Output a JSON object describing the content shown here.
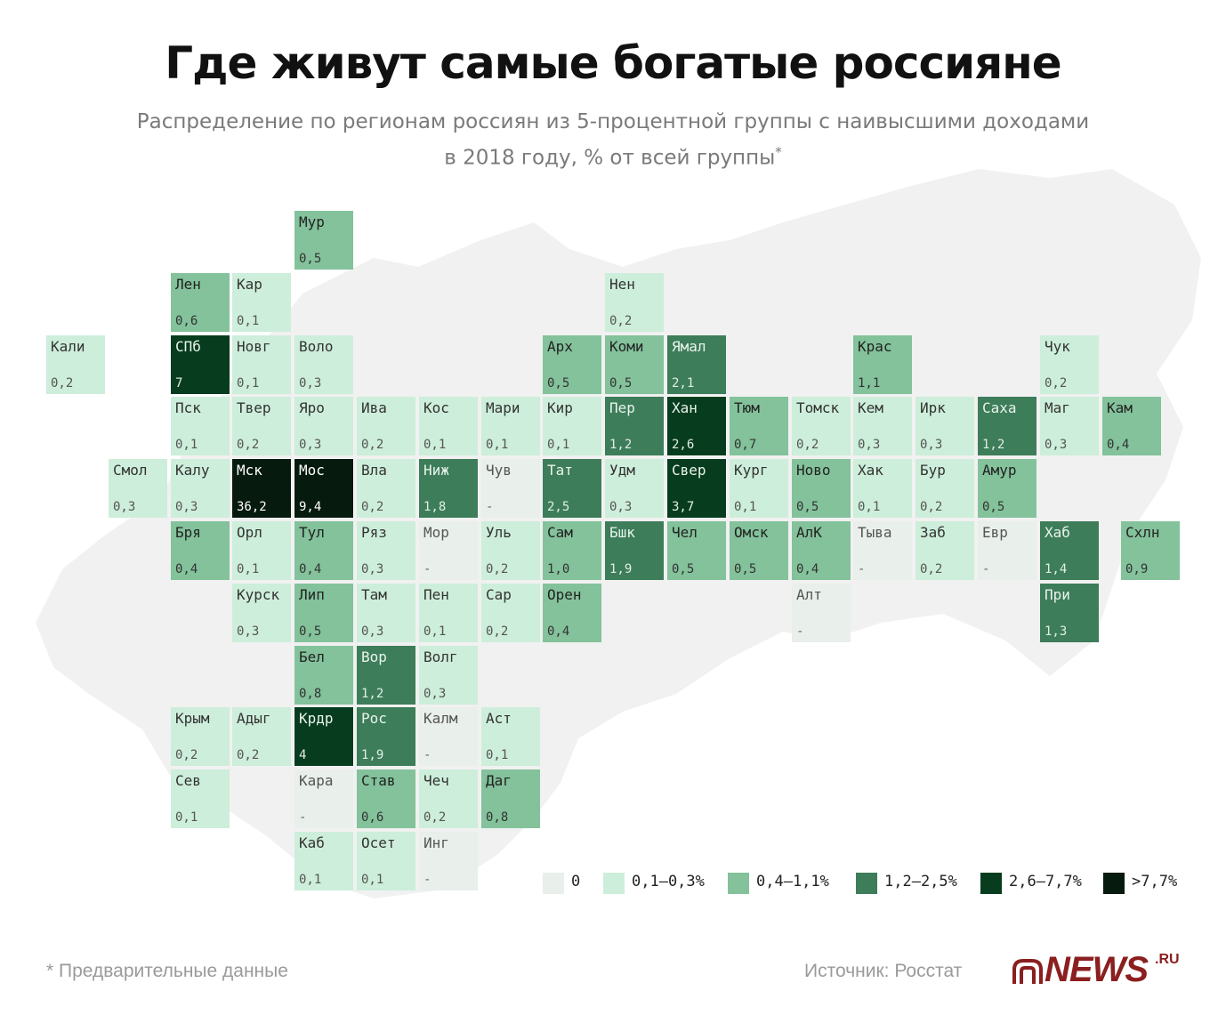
{
  "chart_data": {
    "type": "tile-map",
    "title": "Где живут самые богатые россияне",
    "subtitle_line1": "Распределение по регионам россиян из 5-процентной группы с наивысшими доходами",
    "subtitle_line2": "в 2018 году, % от всей группы",
    "subtitle_mark": "*",
    "regions": [
      {
        "abbr": "Мур",
        "value": "0,5",
        "col": 5,
        "row": 0
      },
      {
        "abbr": "Лен",
        "value": "0,6",
        "col": 3,
        "row": 1
      },
      {
        "abbr": "Кар",
        "value": "0,1",
        "col": 4,
        "row": 1
      },
      {
        "abbr": "Нен",
        "value": "0,2",
        "col": 10,
        "row": 1
      },
      {
        "abbr": "Кали",
        "value": "0,2",
        "col": 1,
        "row": 2
      },
      {
        "abbr": "СПб",
        "value": "7",
        "col": 3,
        "row": 2
      },
      {
        "abbr": "Новг",
        "value": "0,1",
        "col": 4,
        "row": 2
      },
      {
        "abbr": "Воло",
        "value": "0,3",
        "col": 5,
        "row": 2
      },
      {
        "abbr": "Арх",
        "value": "0,5",
        "col": 9,
        "row": 2
      },
      {
        "abbr": "Коми",
        "value": "0,5",
        "col": 10,
        "row": 2
      },
      {
        "abbr": "Ямал",
        "value": "2,1",
        "col": 11,
        "row": 2
      },
      {
        "abbr": "Крас",
        "value": "1,1",
        "col": 14,
        "row": 2
      },
      {
        "abbr": "Чук",
        "value": "0,2",
        "col": 17,
        "row": 2
      },
      {
        "abbr": "Пск",
        "value": "0,1",
        "col": 3,
        "row": 3
      },
      {
        "abbr": "Твер",
        "value": "0,2",
        "col": 4,
        "row": 3
      },
      {
        "abbr": "Яро",
        "value": "0,3",
        "col": 5,
        "row": 3
      },
      {
        "abbr": "Ива",
        "value": "0,2",
        "col": 6,
        "row": 3
      },
      {
        "abbr": "Кос",
        "value": "0,1",
        "col": 7,
        "row": 3
      },
      {
        "abbr": "Мари",
        "value": "0,1",
        "col": 8,
        "row": 3
      },
      {
        "abbr": "Кир",
        "value": "0,1",
        "col": 9,
        "row": 3
      },
      {
        "abbr": "Пер",
        "value": "1,2",
        "col": 10,
        "row": 3
      },
      {
        "abbr": "Хан",
        "value": "2,6",
        "col": 11,
        "row": 3
      },
      {
        "abbr": "Тюм",
        "value": "0,7",
        "col": 12,
        "row": 3
      },
      {
        "abbr": "Томск",
        "value": "0,2",
        "col": 13,
        "row": 3
      },
      {
        "abbr": "Кем",
        "value": "0,3",
        "col": 14,
        "row": 3
      },
      {
        "abbr": "Ирк",
        "value": "0,3",
        "col": 15,
        "row": 3
      },
      {
        "abbr": "Саха",
        "value": "1,2",
        "col": 16,
        "row": 3
      },
      {
        "abbr": "Маг",
        "value": "0,3",
        "col": 17,
        "row": 3
      },
      {
        "abbr": "Кам",
        "value": "0,4",
        "col": 18,
        "row": 3
      },
      {
        "abbr": "Смол",
        "value": "0,3",
        "col": 2,
        "row": 4
      },
      {
        "abbr": "Калу",
        "value": "0,3",
        "col": 3,
        "row": 4
      },
      {
        "abbr": "Мск",
        "value": "36,2",
        "col": 4,
        "row": 4
      },
      {
        "abbr": "Мос",
        "value": "9,4",
        "col": 5,
        "row": 4
      },
      {
        "abbr": "Вла",
        "value": "0,2",
        "col": 6,
        "row": 4
      },
      {
        "abbr": "Ниж",
        "value": "1,8",
        "col": 7,
        "row": 4
      },
      {
        "abbr": "Чув",
        "value": "-",
        "col": 8,
        "row": 4
      },
      {
        "abbr": "Тат",
        "value": "2,5",
        "col": 9,
        "row": 4
      },
      {
        "abbr": "Удм",
        "value": "0,3",
        "col": 10,
        "row": 4
      },
      {
        "abbr": "Свер",
        "value": "3,7",
        "col": 11,
        "row": 4
      },
      {
        "abbr": "Кург",
        "value": "0,1",
        "col": 12,
        "row": 4
      },
      {
        "abbr": "Ново",
        "value": "0,5",
        "col": 13,
        "row": 4
      },
      {
        "abbr": "Хак",
        "value": "0,1",
        "col": 14,
        "row": 4
      },
      {
        "abbr": "Бур",
        "value": "0,2",
        "col": 15,
        "row": 4
      },
      {
        "abbr": "Амур",
        "value": "0,5",
        "col": 16,
        "row": 4
      },
      {
        "abbr": "Бря",
        "value": "0,4",
        "col": 3,
        "row": 5
      },
      {
        "abbr": "Орл",
        "value": "0,1",
        "col": 4,
        "row": 5
      },
      {
        "abbr": "Тул",
        "value": "0,4",
        "col": 5,
        "row": 5
      },
      {
        "abbr": "Ряз",
        "value": "0,3",
        "col": 6,
        "row": 5
      },
      {
        "abbr": "Мор",
        "value": "-",
        "col": 7,
        "row": 5
      },
      {
        "abbr": "Уль",
        "value": "0,2",
        "col": 8,
        "row": 5
      },
      {
        "abbr": "Сам",
        "value": "1,0",
        "col": 9,
        "row": 5
      },
      {
        "abbr": "Бшк",
        "value": "1,9",
        "col": 10,
        "row": 5
      },
      {
        "abbr": "Чел",
        "value": "0,5",
        "col": 11,
        "row": 5
      },
      {
        "abbr": "Омск",
        "value": "0,5",
        "col": 12,
        "row": 5
      },
      {
        "abbr": "АлК",
        "value": "0,4",
        "col": 13,
        "row": 5
      },
      {
        "abbr": "Тыва",
        "value": "-",
        "col": 14,
        "row": 5
      },
      {
        "abbr": "Заб",
        "value": "0,2",
        "col": 15,
        "row": 5
      },
      {
        "abbr": "Евр",
        "value": "-",
        "col": 16,
        "row": 5
      },
      {
        "abbr": "Хаб",
        "value": "1,4",
        "col": 17,
        "row": 5
      },
      {
        "abbr": "Схлн",
        "value": "0,9",
        "col": 18.3,
        "row": 5
      },
      {
        "abbr": "Курск",
        "value": "0,3",
        "col": 4,
        "row": 6
      },
      {
        "abbr": "Лип",
        "value": "0,5",
        "col": 5,
        "row": 6
      },
      {
        "abbr": "Там",
        "value": "0,3",
        "col": 6,
        "row": 6
      },
      {
        "abbr": "Пен",
        "value": "0,1",
        "col": 7,
        "row": 6
      },
      {
        "abbr": "Сар",
        "value": "0,2",
        "col": 8,
        "row": 6
      },
      {
        "abbr": "Орен",
        "value": "0,4",
        "col": 9,
        "row": 6
      },
      {
        "abbr": "Алт",
        "value": "-",
        "col": 13,
        "row": 6
      },
      {
        "abbr": "При",
        "value": "1,3",
        "col": 17,
        "row": 6
      },
      {
        "abbr": "Бел",
        "value": "0,8",
        "col": 5,
        "row": 7
      },
      {
        "abbr": "Вор",
        "value": "1,2",
        "col": 6,
        "row": 7
      },
      {
        "abbr": "Волг",
        "value": "0,3",
        "col": 7,
        "row": 7
      },
      {
        "abbr": "Крым",
        "value": "0,2",
        "col": 3,
        "row": 8
      },
      {
        "abbr": "Адыг",
        "value": "0,2",
        "col": 4,
        "row": 8
      },
      {
        "abbr": "Крдр",
        "value": "4",
        "col": 5,
        "row": 8
      },
      {
        "abbr": "Рос",
        "value": "1,9",
        "col": 6,
        "row": 8
      },
      {
        "abbr": "Калм",
        "value": "-",
        "col": 7,
        "row": 8
      },
      {
        "abbr": "Аст",
        "value": "0,1",
        "col": 8,
        "row": 8
      },
      {
        "abbr": "Сев",
        "value": "0,1",
        "col": 3,
        "row": 9
      },
      {
        "abbr": "Кара",
        "value": "-",
        "col": 5,
        "row": 9
      },
      {
        "abbr": "Став",
        "value": "0,6",
        "col": 6,
        "row": 9
      },
      {
        "abbr": "Чеч",
        "value": "0,2",
        "col": 7,
        "row": 9
      },
      {
        "abbr": "Даг",
        "value": "0,8",
        "col": 8,
        "row": 9
      },
      {
        "abbr": "Каб",
        "value": "0,1",
        "col": 5,
        "row": 10
      },
      {
        "abbr": "Осет",
        "value": "0,1",
        "col": 6,
        "row": 10
      },
      {
        "abbr": "Инг",
        "value": "-",
        "col": 7,
        "row": 10
      }
    ],
    "legend": [
      {
        "label": "0",
        "color": "#e9efea",
        "min": 0,
        "max": 0
      },
      {
        "label": "0,1–0,3%",
        "color": "#cdeeda",
        "min": 0.1,
        "max": 0.3
      },
      {
        "label": "0,4–1,1%",
        "color": "#83c29b",
        "min": 0.4,
        "max": 1.1
      },
      {
        "label": "1,2–2,5%",
        "color": "#3d7d5a",
        "min": 1.2,
        "max": 2.5
      },
      {
        "label": "2,6–7,7%",
        "color": "#073d1e",
        "min": 2.6,
        "max": 7.7
      },
      {
        "label": ">7,7%",
        "color": "#061a0e",
        "min": 7.8,
        "max": 1000
      }
    ]
  },
  "footer": {
    "footnote": "* Предварительные данные",
    "source": "Источник: Росстат",
    "logo_text": "NEWS",
    "logo_suffix": ".RU"
  }
}
